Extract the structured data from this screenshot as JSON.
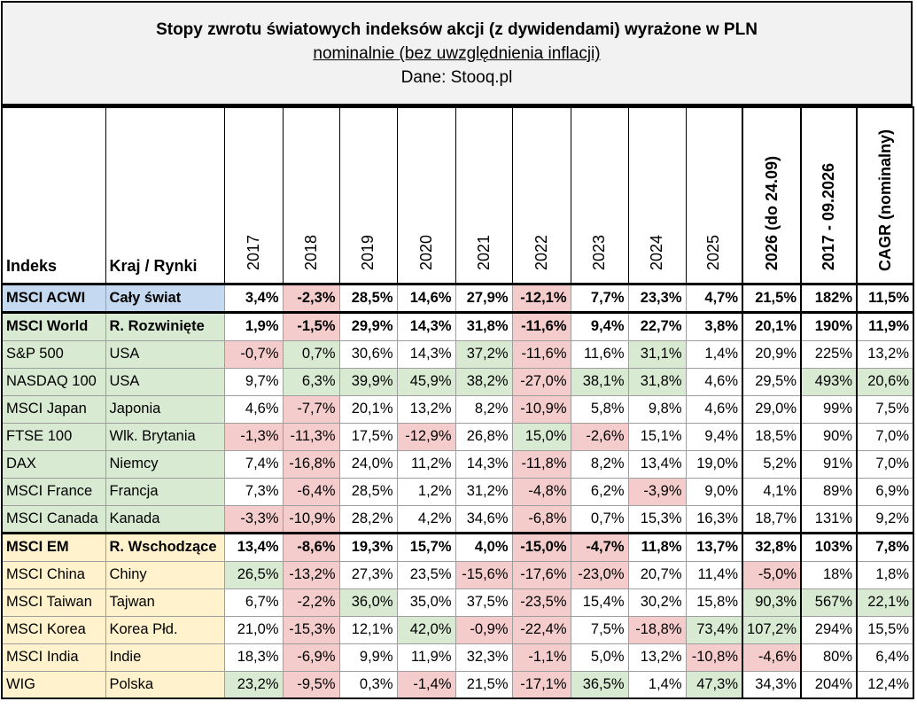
{
  "title": "Stopy zwrotu światowych indeksów akcji (z dywidendami) wyrażone w PLN",
  "subtitle": "nominalnie (bez uwzględnienia inflacji)",
  "source": "Dane: Stooq.pl",
  "headers": [
    "Indeks",
    "Kraj / Rynki",
    "2017",
    "2018",
    "2019",
    "2020",
    "2021",
    "2022",
    "2023",
    "2024",
    "2025",
    "2026 (do 24.09)",
    "2017 - 09.2026",
    "CAGR (nominalny)"
  ],
  "rows": [
    {
      "name": "MSCI ACWI",
      "region": "Cały świat",
      "values": [
        "3,4%",
        "-2,3%",
        "28,5%",
        "14,6%",
        "27,9%",
        "-12,1%",
        "7,7%",
        "23,3%",
        "4,7%",
        "21,5%",
        "182%",
        "11,5%"
      ],
      "colors": [
        "",
        "r",
        "",
        "",
        "",
        "r",
        "",
        "",
        "",
        "",
        "",
        ""
      ]
    },
    {
      "name": "MSCI World",
      "region": "R. Rozwinięte",
      "values": [
        "1,9%",
        "-1,5%",
        "29,9%",
        "14,3%",
        "31,8%",
        "-11,6%",
        "9,4%",
        "22,7%",
        "3,8%",
        "20,1%",
        "190%",
        "11,9%"
      ],
      "colors": [
        "",
        "r",
        "",
        "",
        "",
        "r",
        "",
        "",
        "",
        "",
        "",
        ""
      ]
    },
    {
      "name": "S&P 500",
      "region": "USA",
      "values": [
        "-0,7%",
        "0,7%",
        "30,6%",
        "14,3%",
        "37,2%",
        "-11,6%",
        "11,6%",
        "31,1%",
        "1,4%",
        "20,9%",
        "225%",
        "13,2%"
      ],
      "colors": [
        "r",
        "g",
        "",
        "",
        "g",
        "r",
        "",
        "g",
        "",
        "",
        "",
        ""
      ]
    },
    {
      "name": "NASDAQ 100",
      "region": "USA",
      "values": [
        "9,7%",
        "6,3%",
        "39,9%",
        "45,9%",
        "38,2%",
        "-27,0%",
        "38,1%",
        "31,8%",
        "4,6%",
        "29,5%",
        "493%",
        "20,6%"
      ],
      "colors": [
        "",
        "g",
        "g",
        "g",
        "g",
        "r",
        "g",
        "g",
        "",
        "",
        "g",
        "g"
      ]
    },
    {
      "name": "MSCI Japan",
      "region": "Japonia",
      "values": [
        "4,6%",
        "-7,7%",
        "20,1%",
        "13,2%",
        "8,2%",
        "-10,9%",
        "5,8%",
        "9,8%",
        "4,6%",
        "29,0%",
        "99%",
        "7,5%"
      ],
      "colors": [
        "",
        "r",
        "",
        "",
        "",
        "r",
        "",
        "",
        "",
        "",
        "",
        ""
      ]
    },
    {
      "name": "FTSE 100",
      "region": "Wlk. Brytania",
      "values": [
        "-1,3%",
        "-11,3%",
        "17,5%",
        "-12,9%",
        "26,8%",
        "15,0%",
        "-2,6%",
        "15,1%",
        "9,4%",
        "18,5%",
        "90%",
        "7,0%"
      ],
      "colors": [
        "r",
        "r",
        "",
        "r",
        "",
        "g",
        "r",
        "",
        "",
        "",
        "",
        ""
      ]
    },
    {
      "name": "DAX",
      "region": "Niemcy",
      "values": [
        "7,4%",
        "-16,8%",
        "24,0%",
        "11,2%",
        "14,3%",
        "-11,8%",
        "8,2%",
        "13,4%",
        "19,0%",
        "5,2%",
        "91%",
        "7,0%"
      ],
      "colors": [
        "",
        "r",
        "",
        "",
        "",
        "r",
        "",
        "",
        "",
        "",
        "",
        ""
      ]
    },
    {
      "name": "MSCI France",
      "region": "Francja",
      "values": [
        "7,3%",
        "-6,4%",
        "28,5%",
        "1,2%",
        "31,2%",
        "-4,8%",
        "6,2%",
        "-3,9%",
        "9,0%",
        "4,1%",
        "89%",
        "6,9%"
      ],
      "colors": [
        "",
        "r",
        "",
        "",
        "",
        "r",
        "",
        "r",
        "",
        "",
        "",
        ""
      ]
    },
    {
      "name": "MSCI Canada",
      "region": "Kanada",
      "values": [
        "-3,3%",
        "-10,9%",
        "28,2%",
        "4,2%",
        "34,6%",
        "-6,8%",
        "0,7%",
        "15,3%",
        "16,3%",
        "18,7%",
        "131%",
        "9,2%"
      ],
      "colors": [
        "r",
        "r",
        "",
        "",
        "",
        "r",
        "",
        "",
        "",
        "",
        "",
        ""
      ]
    },
    {
      "name": "MSCI EM",
      "region": "R. Wschodzące",
      "values": [
        "13,4%",
        "-8,6%",
        "19,3%",
        "15,7%",
        "4,0%",
        "-15,0%",
        "-4,7%",
        "11,8%",
        "13,7%",
        "32,8%",
        "103%",
        "7,8%"
      ],
      "colors": [
        "",
        "r",
        "",
        "",
        "",
        "r",
        "r",
        "",
        "",
        "",
        "",
        ""
      ]
    },
    {
      "name": "MSCI China",
      "region": "Chiny",
      "values": [
        "26,5%",
        "-13,2%",
        "27,3%",
        "23,5%",
        "-15,6%",
        "-17,6%",
        "-23,0%",
        "20,7%",
        "11,4%",
        "-5,0%",
        "18%",
        "1,8%"
      ],
      "colors": [
        "g",
        "r",
        "",
        "",
        "r",
        "r",
        "r",
        "",
        "",
        "r",
        "",
        ""
      ]
    },
    {
      "name": "MSCI Taiwan",
      "region": "Tajwan",
      "values": [
        "6,7%",
        "-2,2%",
        "36,0%",
        "35,0%",
        "37,5%",
        "-23,5%",
        "15,4%",
        "30,2%",
        "15,8%",
        "90,3%",
        "567%",
        "22,1%"
      ],
      "colors": [
        "",
        "r",
        "g",
        "",
        "",
        "r",
        "",
        "",
        "",
        "g",
        "g",
        "g"
      ]
    },
    {
      "name": "MSCI Korea",
      "region": "Korea Płd.",
      "values": [
        "21,0%",
        "-15,3%",
        "12,1%",
        "42,0%",
        "-0,9%",
        "-22,4%",
        "7,5%",
        "-18,8%",
        "73,4%",
        "107,2%",
        "294%",
        "15,5%"
      ],
      "colors": [
        "",
        "r",
        "",
        "g",
        "r",
        "r",
        "",
        "r",
        "g",
        "g",
        "",
        ""
      ]
    },
    {
      "name": "MSCI India",
      "region": "Indie",
      "values": [
        "18,3%",
        "-6,9%",
        "9,9%",
        "11,9%",
        "32,3%",
        "-1,1%",
        "5,0%",
        "13,2%",
        "-10,8%",
        "-4,6%",
        "80%",
        "6,4%"
      ],
      "colors": [
        "",
        "r",
        "",
        "",
        "",
        "r",
        "",
        "",
        "r",
        "r",
        "",
        ""
      ]
    },
    {
      "name": "WIG",
      "region": "Polska",
      "values": [
        "23,2%",
        "-9,5%",
        "0,3%",
        "-1,4%",
        "21,5%",
        "-17,1%",
        "36,5%",
        "1,4%",
        "47,3%",
        "34,3%",
        "204%",
        "12,4%"
      ],
      "colors": [
        "g",
        "r",
        "",
        "r",
        "",
        "r",
        "g",
        "",
        "g",
        "",
        "",
        ""
      ]
    }
  ]
}
